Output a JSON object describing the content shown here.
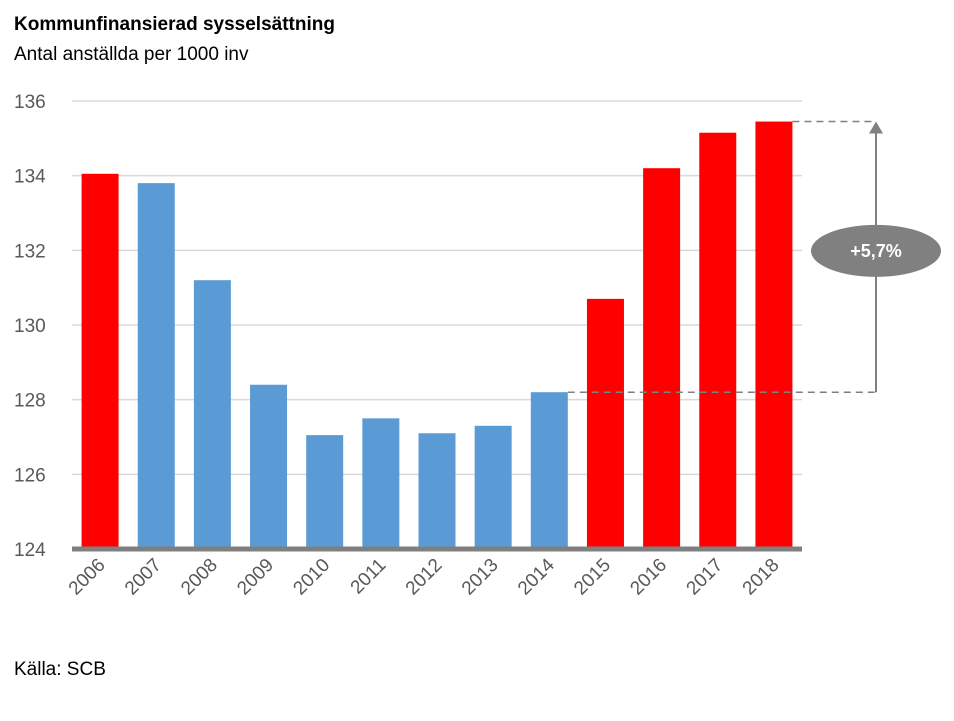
{
  "chart_data": {
    "type": "bar",
    "title": "Kommunfinansierad sysselsättning",
    "subtitle": "Antal anställda per 1000 inv",
    "source": "Källa: SCB",
    "categories": [
      "2006",
      "2007",
      "2008",
      "2009",
      "2010",
      "2011",
      "2012",
      "2013",
      "2014",
      "2015",
      "2016",
      "2017",
      "2018"
    ],
    "values": [
      134.05,
      133.8,
      131.2,
      128.4,
      127.05,
      127.5,
      127.1,
      127.3,
      128.2,
      130.7,
      134.2,
      135.15,
      135.45
    ],
    "bar_colors": [
      "#ff0000",
      "#5b9bd5",
      "#5b9bd5",
      "#5b9bd5",
      "#5b9bd5",
      "#5b9bd5",
      "#5b9bd5",
      "#5b9bd5",
      "#5b9bd5",
      "#ff0000",
      "#ff0000",
      "#ff0000",
      "#ff0000"
    ],
    "ylim": [
      124,
      136
    ],
    "yticks": [
      124,
      126,
      128,
      130,
      132,
      134,
      136
    ],
    "grid": true,
    "annotation": {
      "label": "+5,7%",
      "from_value": 128.2,
      "to_value": 135.45,
      "color": "#808080"
    }
  }
}
